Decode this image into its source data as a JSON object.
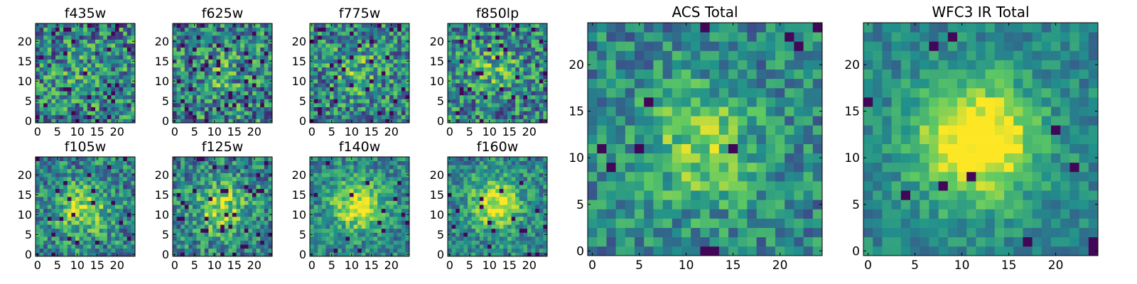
{
  "figure": {
    "description_free": true,
    "colormap": [
      "#440154",
      "#3b528b",
      "#21918c",
      "#5ec962",
      "#fde725"
    ]
  },
  "chart_data": [
    {
      "type": "heatmap",
      "title": "f435w",
      "grid": 25,
      "xticks": [
        0,
        5,
        10,
        15,
        20
      ],
      "yticks": [
        0,
        5,
        10,
        15,
        20
      ],
      "xlim": [
        -0.5,
        24.5
      ],
      "ylim": [
        -0.5,
        24.5
      ],
      "seed": 11,
      "blob": 0.1,
      "noise": 0.7,
      "dark_fraction": 0.05
    },
    {
      "type": "heatmap",
      "title": "f625w",
      "grid": 25,
      "xticks": [
        0,
        5,
        10,
        15,
        20
      ],
      "yticks": [
        0,
        5,
        10,
        15,
        20
      ],
      "xlim": [
        -0.5,
        24.5
      ],
      "ylim": [
        -0.5,
        24.5
      ],
      "seed": 23,
      "blob": 0.15,
      "noise": 0.7,
      "dark_fraction": 0.05
    },
    {
      "type": "heatmap",
      "title": "f775w",
      "grid": 25,
      "xticks": [
        0,
        5,
        10,
        15,
        20
      ],
      "yticks": [
        0,
        5,
        10,
        15,
        20
      ],
      "xlim": [
        -0.5,
        24.5
      ],
      "ylim": [
        -0.5,
        24.5
      ],
      "seed": 37,
      "blob": 0.2,
      "noise": 0.65,
      "dark_fraction": 0.05
    },
    {
      "type": "heatmap",
      "title": "f850lp",
      "grid": 25,
      "xticks": [
        0,
        5,
        10,
        15,
        20
      ],
      "yticks": [
        0,
        5,
        10,
        15,
        20
      ],
      "xlim": [
        -0.5,
        24.5
      ],
      "ylim": [
        -0.5,
        24.5
      ],
      "seed": 41,
      "blob": 0.2,
      "noise": 0.65,
      "dark_fraction": 0.05
    },
    {
      "type": "heatmap",
      "title": "f105w",
      "grid": 25,
      "xticks": [
        0,
        5,
        10,
        15,
        20
      ],
      "yticks": [
        0,
        5,
        10,
        15,
        20
      ],
      "xlim": [
        -0.5,
        24.5
      ],
      "ylim": [
        -0.5,
        24.5
      ],
      "seed": 53,
      "blob": 0.4,
      "noise": 0.55,
      "dark_fraction": 0.04
    },
    {
      "type": "heatmap",
      "title": "f125w",
      "grid": 25,
      "xticks": [
        0,
        5,
        10,
        15,
        20
      ],
      "yticks": [
        0,
        5,
        10,
        15,
        20
      ],
      "xlim": [
        -0.5,
        24.5
      ],
      "ylim": [
        -0.5,
        24.5
      ],
      "seed": 67,
      "blob": 0.4,
      "noise": 0.55,
      "dark_fraction": 0.04
    },
    {
      "type": "heatmap",
      "title": "f140w",
      "grid": 25,
      "xticks": [
        0,
        5,
        10,
        15,
        20
      ],
      "yticks": [
        0,
        5,
        10,
        15,
        20
      ],
      "xlim": [
        -0.5,
        24.5
      ],
      "ylim": [
        -0.5,
        24.5
      ],
      "seed": 71,
      "blob": 0.5,
      "noise": 0.45,
      "dark_fraction": 0.02
    },
    {
      "type": "heatmap",
      "title": "f160w",
      "grid": 25,
      "xticks": [
        0,
        5,
        10,
        15,
        20
      ],
      "yticks": [
        0,
        5,
        10,
        15,
        20
      ],
      "xlim": [
        -0.5,
        24.5
      ],
      "ylim": [
        -0.5,
        24.5
      ],
      "seed": 83,
      "blob": 0.5,
      "noise": 0.45,
      "dark_fraction": 0.03
    },
    {
      "type": "heatmap",
      "title": "ACS Total",
      "grid": 25,
      "xticks": [
        0,
        5,
        10,
        15,
        20
      ],
      "yticks": [
        0,
        5,
        10,
        15,
        20
      ],
      "xlim": [
        -0.5,
        24.5
      ],
      "ylim": [
        -0.5,
        24.5
      ],
      "seed": 97,
      "blob": 0.35,
      "noise": 0.45,
      "dark_fraction": 0.02
    },
    {
      "type": "heatmap",
      "title": "WFC3 IR Total",
      "grid": 25,
      "xticks": [
        0,
        5,
        10,
        15,
        20
      ],
      "yticks": [
        0,
        5,
        10,
        15,
        20
      ],
      "xlim": [
        -0.5,
        24.5
      ],
      "ylim": [
        -0.5,
        24.5
      ],
      "seed": 101,
      "blob": 0.7,
      "noise": 0.3,
      "dark_fraction": 0.015
    }
  ]
}
